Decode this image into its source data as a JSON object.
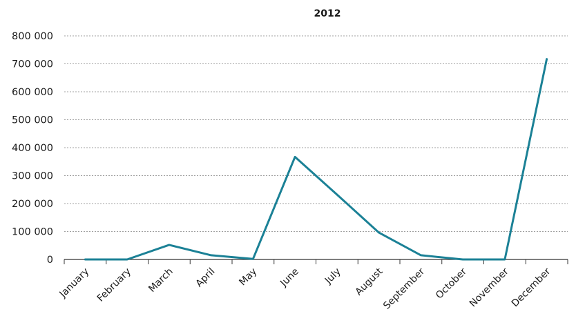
{
  "chart_data": {
    "type": "line",
    "title": "2012",
    "xlabel": "",
    "ylabel": "",
    "categories": [
      "January",
      "February",
      "March",
      "April",
      "May",
      "June",
      "July",
      "August",
      "September",
      "October",
      "November",
      "December"
    ],
    "series": [
      {
        "values": [
          0,
          0,
          52000,
          15000,
          2000,
          367000,
          232000,
          96000,
          15000,
          0,
          0,
          717000
        ]
      }
    ],
    "ylim": [
      0,
      800000
    ],
    "yticks": [
      0,
      100000,
      200000,
      300000,
      400000,
      500000,
      600000,
      700000,
      800000
    ],
    "ytick_labels": [
      "0",
      "100 000",
      "200 000",
      "300 000",
      "400 000",
      "500 000",
      "600 000",
      "700 000",
      "800 000"
    ],
    "grid": true,
    "legend": "none",
    "colors": {
      "series": "#1b8196",
      "grid": "#a0a0a0",
      "axis": "#333333"
    }
  }
}
